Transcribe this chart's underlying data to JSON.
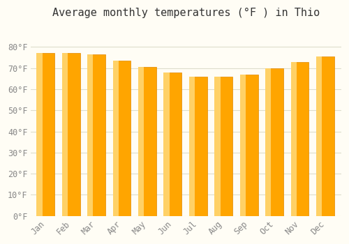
{
  "title": "Average monthly temperatures (°F ) in Thio",
  "months": [
    "Jan",
    "Feb",
    "Mar",
    "Apr",
    "May",
    "Jun",
    "Jul",
    "Aug",
    "Sep",
    "Oct",
    "Nov",
    "Dec"
  ],
  "values": [
    77.0,
    77.0,
    76.5,
    73.5,
    70.5,
    68.0,
    66.0,
    66.0,
    67.0,
    70.0,
    73.0,
    75.5
  ],
  "bar_color": "#FFA500",
  "bar_color_light": "#FFD166",
  "background_color": "#FFFDF5",
  "grid_color": "#DDDDCC",
  "tick_color": "#AAAAAA",
  "title_fontsize": 11,
  "tick_fontsize": 8.5,
  "ylim": [
    0,
    90
  ],
  "yticks": [
    0,
    10,
    20,
    30,
    40,
    50,
    60,
    70,
    80
  ],
  "ylabel_format": "°F"
}
